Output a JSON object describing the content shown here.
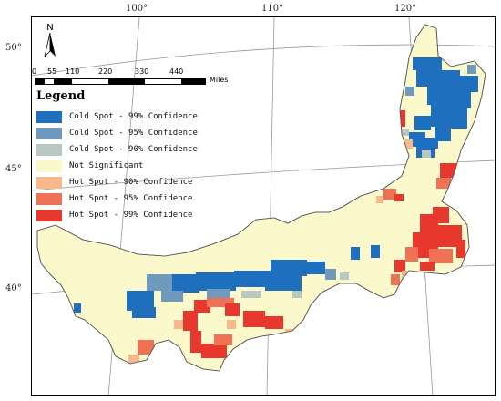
{
  "map": {
    "longitude_labels": [
      "100°",
      "110°",
      "120°"
    ],
    "latitude_labels": [
      "50°",
      "45°",
      "40°"
    ],
    "north_label": "N",
    "scale": {
      "ticks": [
        "0",
        "55",
        "110",
        "220",
        "330",
        "440"
      ],
      "unit": "Miles"
    },
    "legend": {
      "title": "Legend",
      "items": [
        {
          "label": "Cold Spot - 99% Confidence",
          "color": "#1f6fbf"
        },
        {
          "label": "Cold Spot - 95% Confidence",
          "color": "#7099be"
        },
        {
          "label": "Cold Spot - 90% Confidence",
          "color": "#b9c7c2"
        },
        {
          "label": "Not Significant",
          "color": "#fbf8cc"
        },
        {
          "label": "Hot Spot - 90% Confidence",
          "color": "#f8b88a"
        },
        {
          "label": "Hot Spot - 95% Confidence",
          "color": "#f07255"
        },
        {
          "label": "Hot Spot - 99% Confidence",
          "color": "#e8382e"
        }
      ]
    }
  }
}
